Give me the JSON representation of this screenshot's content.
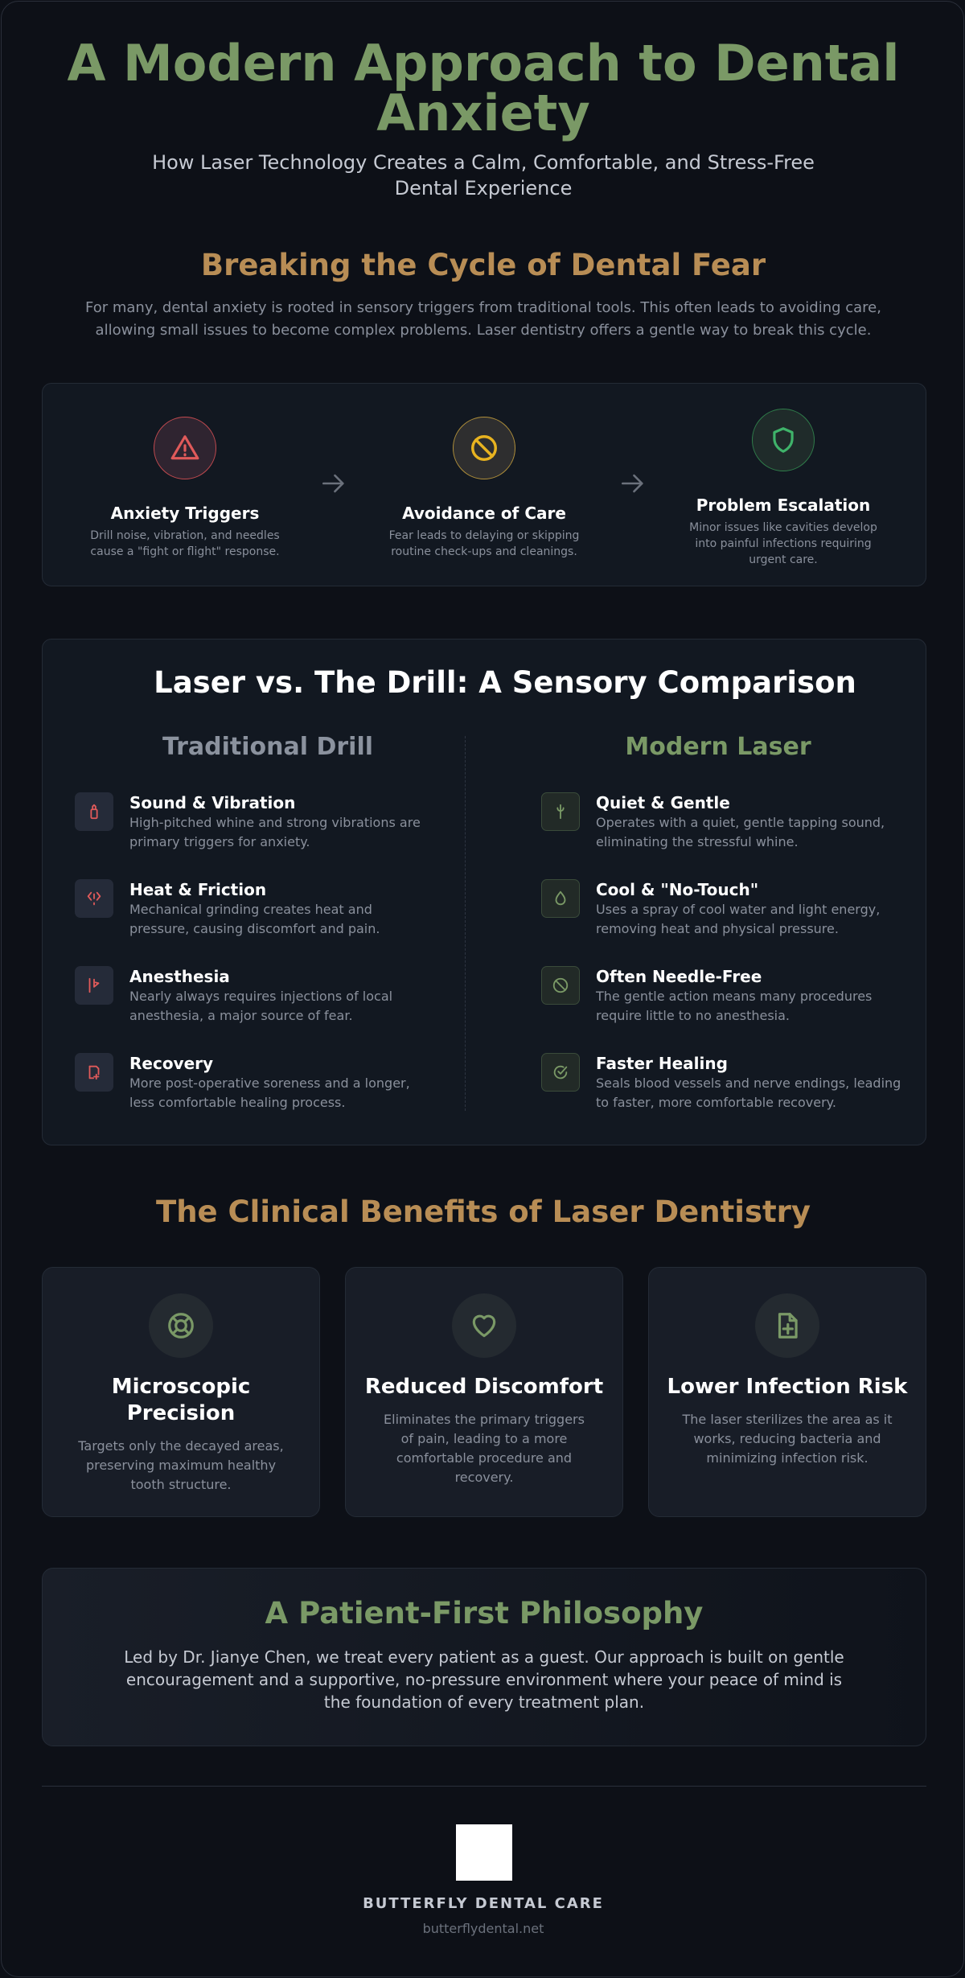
{
  "hero": {
    "title": "A Modern Approach to Dental Anxiety",
    "subtitle": "How Laser Technology Creates a Calm, Comfortable, and Stress-Free Dental Experience"
  },
  "cycle": {
    "title": "Breaking the Cycle of Dental Fear",
    "description": "For many, dental anxiety is rooted in sensory triggers from traditional tools. This often leads to avoiding care, allowing small issues to become complex problems. Laser dentistry offers a gentle way to break this cycle.",
    "steps": [
      {
        "icon": "warning-triangle-icon",
        "color": "#e05a5a",
        "title": "Anxiety Triggers",
        "desc": "Drill noise, vibration, and needles cause a \"fight or flight\" response."
      },
      {
        "icon": "no-entry-icon",
        "color": "#e8b320",
        "title": "Avoidance of Care",
        "desc": "Fear leads to delaying or skipping routine check-ups and cleanings."
      },
      {
        "icon": "shield-icon",
        "color": "#3fb36a",
        "title": "Problem Escalation",
        "desc": "Minor issues like cavities develop into painful infections requiring urgent care."
      }
    ]
  },
  "comparison": {
    "title": "Laser vs. The Drill: A Sensory Comparison",
    "left_heading": "Traditional Drill",
    "right_heading": "Modern Laser",
    "drill": [
      {
        "icon": "drill-bit-icon",
        "title": "Sound & Vibration",
        "desc": "High-pitched whine and strong vibrations are primary triggers for anxiety."
      },
      {
        "icon": "friction-heat-icon",
        "title": "Heat & Friction",
        "desc": "Mechanical grinding creates heat and pressure, causing discomfort and pain."
      },
      {
        "icon": "syringe-icon",
        "title": "Anesthesia",
        "desc": "Nearly always requires injections of local anesthesia, a major source of fear."
      },
      {
        "icon": "recovery-note-icon",
        "title": "Recovery",
        "desc": "More post-operative soreness and a longer, less comfortable healing process."
      }
    ],
    "laser": [
      {
        "icon": "laser-beam-icon",
        "title": "Quiet & Gentle",
        "desc": "Operates with a quiet, gentle tapping sound, eliminating the stressful whine."
      },
      {
        "icon": "water-drop-icon",
        "title": "Cool & \"No-Touch\"",
        "desc": "Uses a spray of cool water and light energy, removing heat and physical pressure."
      },
      {
        "icon": "no-needle-icon",
        "title": "Often Needle-Free",
        "desc": "The gentle action means many procedures require little to no anesthesia."
      },
      {
        "icon": "check-circle-icon",
        "title": "Faster Healing",
        "desc": "Seals blood vessels and nerve endings, leading to faster, more comfortable recovery."
      }
    ]
  },
  "benefits": {
    "title": "The Clinical Benefits of Laser Dentistry",
    "cards": [
      {
        "icon": "lifebuoy-icon",
        "title": "Microscopic Precision",
        "desc": "Targets only the decayed areas, preserving maximum healthy tooth structure."
      },
      {
        "icon": "heart-icon",
        "title": "Reduced Discomfort",
        "desc": "Eliminates the primary triggers of pain, leading to a more comfortable procedure and recovery."
      },
      {
        "icon": "medical-file-icon",
        "title": "Lower Infection Risk",
        "desc": "The laser sterilizes the area as it works, reducing bacteria and minimizing infection risk."
      }
    ]
  },
  "philosophy": {
    "title": "A Patient-First Philosophy",
    "text": "Led by Dr. Jianye Chen, we treat every patient as a guest. Our approach is built on gentle encouragement and a supportive, no-pressure environment where your peace of mind is the foundation of every treatment plan."
  },
  "footer": {
    "brand": "BUTTERFLY DENTAL CARE",
    "site": "butterflydental.net"
  },
  "colors": {
    "green": "#7a9966",
    "gold": "#b88d55",
    "red": "#e05a5a"
  }
}
